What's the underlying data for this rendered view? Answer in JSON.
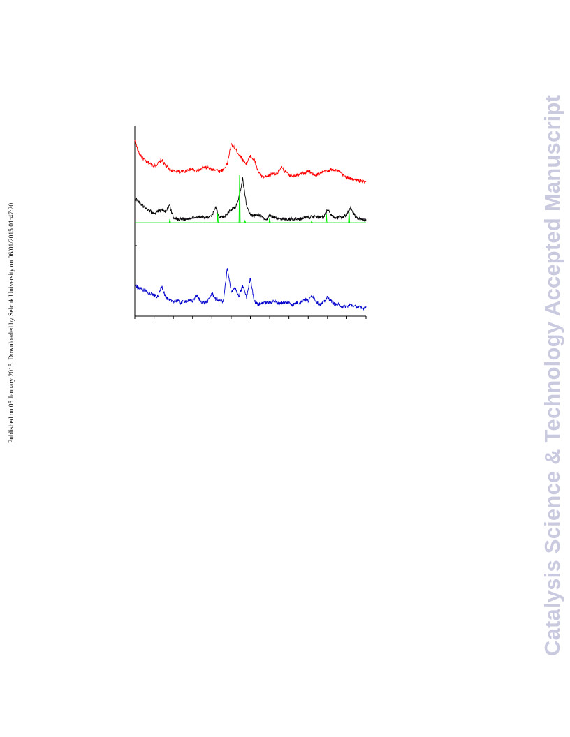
{
  "side_note": "Published on 05 January 2015. Downloaded by Selcuk University on 06/01/2015 01:47:20.",
  "watermark": "Catalysis Science & Technology Accepted Manuscript",
  "chart_data": {
    "type": "line",
    "title": "",
    "xlabel": "",
    "ylabel": "",
    "xlim": [
      0,
      60
    ],
    "x_ticks_count": 13,
    "grid": false,
    "legend": "none",
    "series": [
      {
        "color": "#ff0000",
        "style": "noisy",
        "x": [
          0,
          1,
          2,
          3,
          4,
          5,
          6,
          7,
          8,
          9,
          10,
          11,
          12,
          13,
          14,
          15,
          16,
          17,
          18,
          19,
          20,
          21,
          22,
          23,
          24,
          25,
          26,
          27,
          28,
          29,
          30,
          31,
          32,
          33,
          34,
          35,
          36,
          37,
          38,
          39,
          40,
          41,
          42,
          43,
          44,
          45,
          46,
          47,
          48,
          49,
          50,
          51,
          52,
          53,
          54,
          55,
          56,
          57,
          58,
          59,
          60
        ],
        "y": [
          0.92,
          0.86,
          0.83,
          0.81,
          0.8,
          0.79,
          0.8,
          0.82,
          0.79,
          0.77,
          0.76,
          0.76,
          0.76,
          0.76,
          0.77,
          0.77,
          0.76,
          0.77,
          0.78,
          0.78,
          0.77,
          0.77,
          0.76,
          0.77,
          0.8,
          0.9,
          0.88,
          0.85,
          0.82,
          0.8,
          0.84,
          0.82,
          0.76,
          0.73,
          0.73,
          0.74,
          0.75,
          0.75,
          0.78,
          0.76,
          0.74,
          0.74,
          0.74,
          0.75,
          0.75,
          0.76,
          0.75,
          0.74,
          0.75,
          0.76,
          0.76,
          0.77,
          0.77,
          0.76,
          0.74,
          0.73,
          0.72,
          0.72,
          0.71,
          0.71,
          0.7
        ]
      },
      {
        "color": "#000000",
        "style": "noisy",
        "x": [
          0,
          1,
          2,
          3,
          4,
          5,
          6,
          7,
          8,
          9,
          10,
          11,
          12,
          13,
          14,
          15,
          16,
          17,
          18,
          19,
          20,
          21,
          22,
          23,
          24,
          25,
          26,
          27,
          28,
          29,
          30,
          31,
          32,
          33,
          34,
          35,
          36,
          37,
          38,
          39,
          40,
          41,
          42,
          43,
          44,
          45,
          46,
          47,
          48,
          49,
          50,
          51,
          52,
          53,
          54,
          55,
          56,
          57,
          58,
          59,
          60
        ],
        "y": [
          0.62,
          0.6,
          0.58,
          0.56,
          0.55,
          0.54,
          0.55,
          0.56,
          0.55,
          0.58,
          0.52,
          0.51,
          0.51,
          0.51,
          0.51,
          0.52,
          0.52,
          0.52,
          0.52,
          0.52,
          0.53,
          0.57,
          0.52,
          0.52,
          0.54,
          0.56,
          0.57,
          0.62,
          0.72,
          0.58,
          0.53,
          0.53,
          0.53,
          0.52,
          0.5,
          0.53,
          0.52,
          0.51,
          0.51,
          0.51,
          0.51,
          0.51,
          0.51,
          0.51,
          0.52,
          0.52,
          0.52,
          0.52,
          0.52,
          0.52,
          0.56,
          0.53,
          0.51,
          0.52,
          0.52,
          0.53,
          0.57,
          0.53,
          0.51,
          0.51,
          0.5
        ]
      },
      {
        "color": "#00ee00",
        "style": "stick",
        "baseline": 0.49,
        "x": [
          9.1,
          21.5,
          27.2,
          28.6,
          35.0,
          45.9,
          49.7,
          55.6
        ],
        "y": [
          0.51,
          0.54,
          0.74,
          0.5,
          0.515,
          0.5,
          0.535,
          0.545
        ]
      },
      {
        "color": "#0000cc",
        "style": "noisy",
        "x": [
          0,
          1,
          2,
          3,
          4,
          5,
          6,
          7,
          8,
          9,
          10,
          11,
          12,
          13,
          14,
          15,
          16,
          17,
          18,
          19,
          20,
          21,
          22,
          23,
          24,
          25,
          26,
          27,
          28,
          29,
          30,
          31,
          32,
          33,
          34,
          35,
          36,
          37,
          38,
          39,
          40,
          41,
          42,
          43,
          44,
          45,
          46,
          47,
          48,
          49,
          50,
          51,
          52,
          53,
          54,
          55,
          56,
          57,
          58,
          59,
          60
        ],
        "y": [
          0.16,
          0.15,
          0.14,
          0.13,
          0.12,
          0.11,
          0.1,
          0.16,
          0.1,
          0.08,
          0.08,
          0.08,
          0.07,
          0.08,
          0.08,
          0.08,
          0.11,
          0.08,
          0.07,
          0.08,
          0.12,
          0.09,
          0.08,
          0.08,
          0.25,
          0.13,
          0.15,
          0.1,
          0.16,
          0.1,
          0.2,
          0.08,
          0.06,
          0.07,
          0.07,
          0.07,
          0.08,
          0.07,
          0.07,
          0.07,
          0.07,
          0.06,
          0.07,
          0.07,
          0.09,
          0.08,
          0.11,
          0.08,
          0.06,
          0.07,
          0.1,
          0.08,
          0.06,
          0.06,
          0.05,
          0.05,
          0.06,
          0.05,
          0.05,
          0.04,
          0.05
        ]
      }
    ]
  }
}
